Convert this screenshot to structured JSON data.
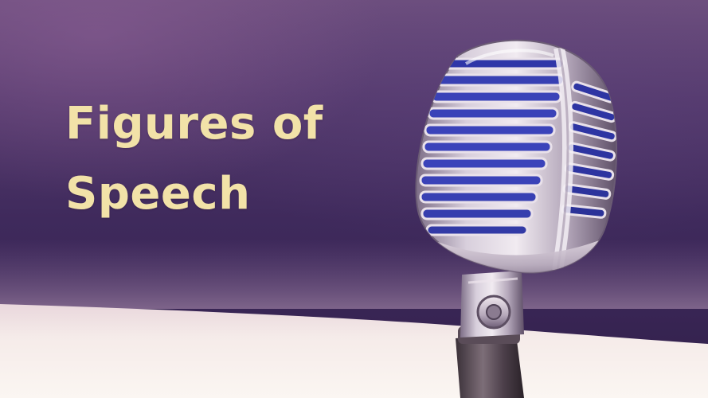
{
  "image": {
    "title_line_1": "Figures of",
    "title_line_2": "Speech"
  },
  "colors": {
    "title": "#f2e2a8",
    "background_top": "#6e4f7e",
    "background_bottom": "#2f1f48",
    "floor_light": "#f6ece8",
    "mic_grille": "#3d43b8",
    "mic_chrome": "#c9bfcf"
  },
  "icons": [
    "microphone-illustration"
  ]
}
